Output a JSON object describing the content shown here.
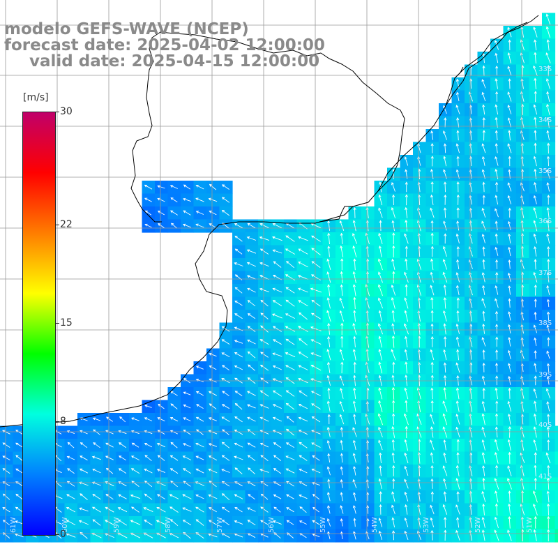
{
  "titles": {
    "model": "modelo GEFS-WAVE (NCEP)",
    "forecast": "forecast date: 2025-04-02 12:00:00",
    "valid": "valid date: 2025-04-15 12:00:00"
  },
  "colorbar": {
    "unit": "[m/s]",
    "ticks": [
      "30",
      "22",
      "15",
      "8",
      "0"
    ],
    "tick_values": [
      30,
      22,
      15,
      8,
      0
    ],
    "colors": [
      "#c0006a",
      "#ff0000",
      "#ff7d00",
      "#ffff00",
      "#00ff00",
      "#00ffdf",
      "#0080ff",
      "#0000ff"
    ]
  },
  "grid_labels": {
    "latitude": [
      "33S",
      "34S",
      "35S",
      "36S",
      "37S",
      "38S",
      "39S",
      "40S",
      "41S"
    ],
    "longitude": [
      "61W",
      "60W",
      "59W",
      "58W",
      "57W",
      "56W",
      "55W",
      "54W",
      "53W",
      "52W",
      "51W"
    ]
  },
  "field": {
    "variable": "wind speed",
    "typical_range_m_s": [
      4,
      9
    ],
    "prevailing_flow": "from south / southeast (arrows pointing north and northwest)"
  },
  "colors": {
    "land": "#ffffff",
    "coast": "#000000",
    "grid": "#999999",
    "title": "#8a8a8a",
    "arrow": "#ffffff"
  }
}
